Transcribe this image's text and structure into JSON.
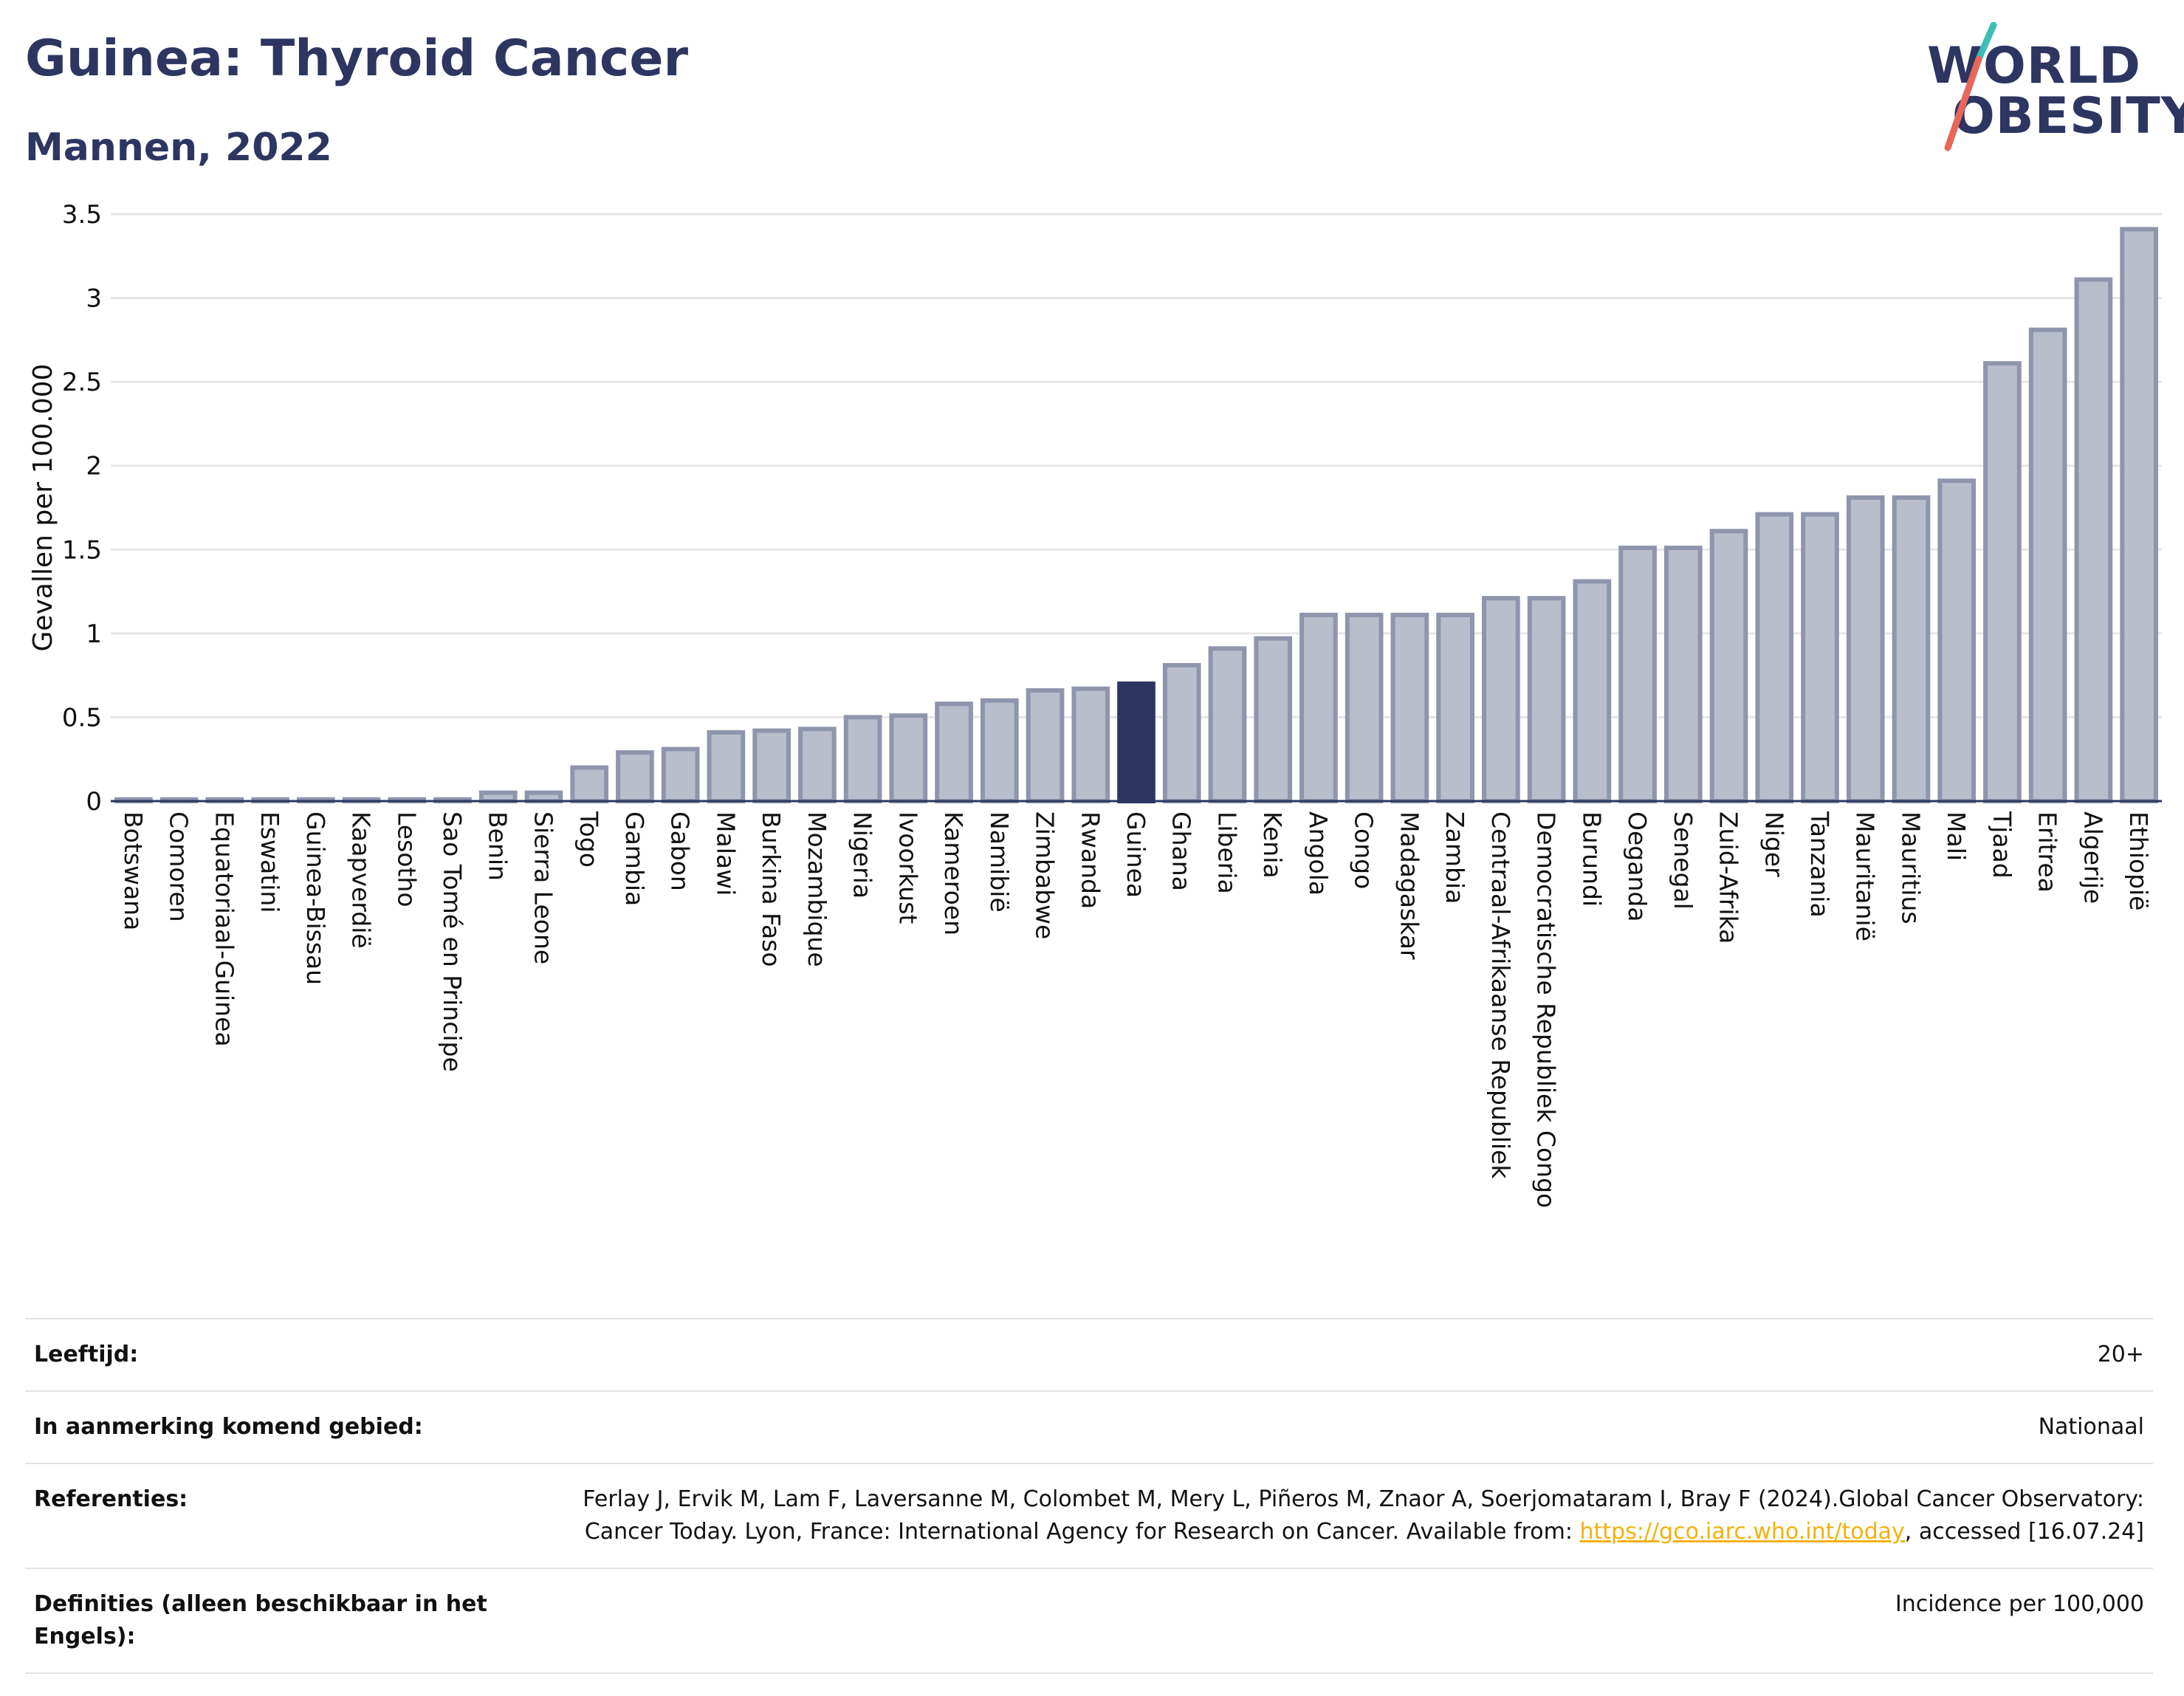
{
  "header": {
    "title": "Guinea: Thyroid Cancer",
    "subtitle": "Mannen, 2022"
  },
  "logo": {
    "line1": "WORLD",
    "line2": "OBESITY",
    "colors": {
      "text": "#2d3561",
      "slash_top": "#3dbdb8",
      "slash_bottom": "#e8665a"
    }
  },
  "colors": {
    "bar": "#b9bdcc",
    "bar_stroke": "#8f95ad",
    "highlight": "#2d3561",
    "grid": "#e6e6ea",
    "axis": "#2d3561"
  },
  "chart_data": {
    "type": "bar",
    "title": "",
    "xlabel": "",
    "ylabel": "Gevallen per 100.000",
    "ylim": [
      0,
      3.5
    ],
    "yticks": [
      0,
      0.5,
      1,
      1.5,
      2,
      2.5,
      3,
      3.5
    ],
    "ytick_labels": [
      "0",
      "0.5",
      "1",
      "1.5",
      "2",
      "2.5",
      "3",
      "3.5"
    ],
    "grid": true,
    "highlight": "Guinea",
    "categories": [
      "Botswana",
      "Comoren",
      "Equatoriaal-Guinea",
      "Eswatini",
      "Guinea-Bissau",
      "Kaapverdië",
      "Lesotho",
      "Sao Tomé en Principe",
      "Benin",
      "Sierra Leone",
      "Togo",
      "Gambia",
      "Gabon",
      "Malawi",
      "Burkina Faso",
      "Mozambique",
      "Nigeria",
      "Ivoorkust",
      "Kameroen",
      "Namibië",
      "Zimbabwe",
      "Rwanda",
      "Guinea",
      "Ghana",
      "Liberia",
      "Kenia",
      "Angola",
      "Congo",
      "Madagaskar",
      "Zambia",
      "Centraal-Afrikaanse Republiek",
      "Democratische Republiek Congo",
      "Burundi",
      "Oeganda",
      "Senegal",
      "Zuid-Afrika",
      "Niger",
      "Tanzania",
      "Mauritanië",
      "Mauritius",
      "Mali",
      "Tjaad",
      "Eritrea",
      "Algerije",
      "Ethiopië"
    ],
    "values": [
      0.01,
      0.01,
      0.01,
      0.01,
      0.01,
      0.01,
      0.01,
      0.01,
      0.05,
      0.05,
      0.2,
      0.29,
      0.31,
      0.41,
      0.42,
      0.43,
      0.5,
      0.51,
      0.58,
      0.6,
      0.66,
      0.67,
      0.7,
      0.81,
      0.91,
      0.97,
      1.11,
      1.11,
      1.11,
      1.11,
      1.21,
      1.21,
      1.31,
      1.51,
      1.51,
      1.61,
      1.71,
      1.71,
      1.81,
      1.81,
      1.91,
      2.61,
      2.81,
      3.11,
      3.41
    ]
  },
  "info": {
    "rows": [
      {
        "label": "Leeftijd:",
        "value": "20+"
      },
      {
        "label": "In aanmerking komend gebied:",
        "value": "Nationaal"
      },
      {
        "label": "Referenties:",
        "value_pre": "Ferlay J, Ervik M, Lam F, Laversanne M, Colombet M, Mery L, Piñeros M, Znaor A, Soerjomataram I, Bray F (2024).Global Cancer Observatory: Cancer Today. Lyon, France: International Agency for Research on Cancer. Available from: ",
        "link": "https://gco.iarc.who.int/today",
        "value_post": ", accessed [16.07.24]"
      },
      {
        "label": "Definities (alleen beschikbaar in het Engels):",
        "value": "Incidence per 100,000"
      }
    ]
  }
}
